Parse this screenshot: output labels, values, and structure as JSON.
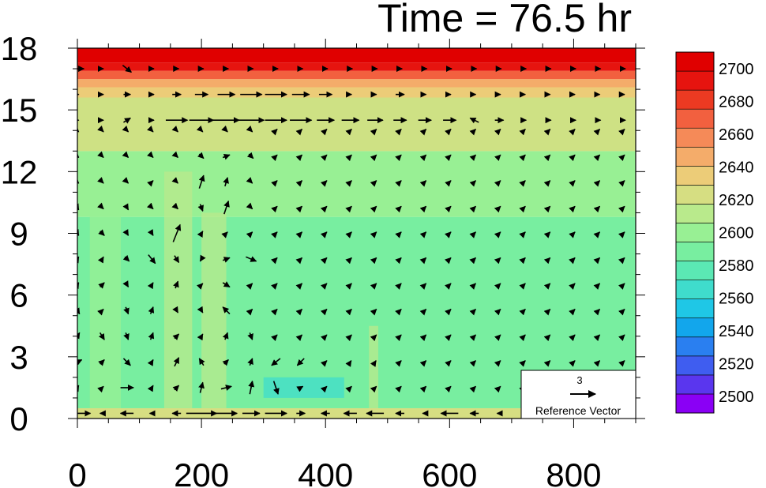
{
  "chart_data": {
    "type": "heatmap",
    "title": "Time = 76.5 hr",
    "x_ticks": [
      0,
      200,
      400,
      600,
      800
    ],
    "y_ticks": [
      0,
      3,
      6,
      9,
      12,
      15,
      18
    ],
    "xlim": [
      0,
      900
    ],
    "ylim": [
      0,
      18
    ],
    "colorbar": {
      "labels": [
        2700,
        2680,
        2660,
        2640,
        2620,
        2600,
        2580,
        2560,
        2540,
        2520,
        2500
      ],
      "range": [
        2490,
        2710
      ],
      "colors": [
        "#8a00f5",
        "#5a36ee",
        "#3f5df0",
        "#2a7ff0",
        "#12a6ec",
        "#1fc7e6",
        "#3fdccc",
        "#5be8b4",
        "#78eea0",
        "#98f094",
        "#b9ea8c",
        "#d6de82",
        "#eccc78",
        "#f4ac6a",
        "#f58a58",
        "#f2603f",
        "#ec3a22",
        "#e6140f",
        "#e00000"
      ]
    },
    "reference_vector": {
      "value": "3",
      "label": "Reference Vector"
    },
    "field_bands": [
      {
        "y0": 0,
        "y1": 0.5,
        "value": 2625
      },
      {
        "y0": 0.5,
        "y1": 9.8,
        "value": 2585
      },
      {
        "y0": 9.8,
        "y1": 13,
        "value": 2598
      },
      {
        "y0": 13,
        "y1": 15.6,
        "value": 2612
      },
      {
        "y0": 15.6,
        "y1": 16.1,
        "value": 2632
      },
      {
        "y0": 16.1,
        "y1": 16.5,
        "value": 2652
      },
      {
        "y0": 16.5,
        "y1": 16.9,
        "value": 2672
      },
      {
        "y0": 16.9,
        "y1": 17.3,
        "value": 2690
      },
      {
        "y0": 17.3,
        "y1": 18,
        "value": 2705
      }
    ],
    "field_patches": [
      {
        "x0": 20,
        "x1": 70,
        "y0": 0.5,
        "y1": 13,
        "value": 2605
      },
      {
        "x0": 140,
        "x1": 185,
        "y0": 0.5,
        "y1": 12,
        "value": 2615
      },
      {
        "x0": 200,
        "x1": 240,
        "y0": 0.5,
        "y1": 10,
        "value": 2612
      },
      {
        "x0": 300,
        "x1": 430,
        "y0": 1.0,
        "y1": 2.0,
        "value": 2568
      },
      {
        "x0": 470,
        "x1": 485,
        "y0": 0.5,
        "y1": 4.5,
        "value": 2612
      },
      {
        "x0": 0,
        "x1": 900,
        "y0": 13,
        "y1": 15.6,
        "value": 2618
      }
    ],
    "vectors": {
      "x_start": 0,
      "x_step": 40,
      "y_start": 0.25,
      "y_step": 1.25,
      "rows": [
        {
          "y": 0.25,
          "u": [
            3,
            -0.5,
            -1.5,
            -0.5,
            -1,
            3.5,
            2.5,
            2,
            2.5,
            1,
            -1,
            -1.5,
            -2,
            -1,
            -0.5,
            -2,
            -1,
            -0.5,
            -0.5,
            -1,
            -0.5,
            -0.5,
            -0.5
          ],
          "v": [
            0,
            0,
            0,
            0,
            0,
            0,
            0,
            0,
            0,
            0,
            0,
            0,
            0,
            0,
            0,
            0,
            0,
            0,
            0,
            0,
            0,
            0,
            0
          ]
        },
        {
          "y": 1.5,
          "u": [
            0.3,
            0.3,
            1.5,
            0.3,
            0.5,
            0.3,
            1.2,
            0.3,
            0.5,
            0.5,
            0.3,
            0.3,
            0.3,
            0.3,
            0.3,
            0.3,
            0.3,
            0.3,
            0.3,
            0.3,
            0.3,
            0.3,
            0.3
          ],
          "v": [
            0.5,
            0.3,
            0,
            0.5,
            0.5,
            1.2,
            0.3,
            1.5,
            -1.5,
            0.3,
            0.3,
            0.3,
            0.3,
            0.3,
            0.3,
            0.3,
            0.3,
            0.3,
            0.3,
            0.3,
            0.3,
            0.3,
            0.3
          ]
        },
        {
          "y": 2.75,
          "u": [
            1,
            0.5,
            0.8,
            0.3,
            0.5,
            -0.5,
            0.5,
            0.3,
            -1,
            -0.8,
            0.3,
            0.2,
            0.2,
            0.3,
            0.3,
            0.3,
            0.3,
            0.3,
            0.3,
            0.3,
            0.3,
            0.3,
            0.3
          ],
          "v": [
            0.5,
            0.5,
            -0.8,
            0.5,
            1,
            0.8,
            0.5,
            0.8,
            -0.8,
            -0.8,
            0.3,
            0.3,
            0.3,
            0.3,
            0.3,
            0.3,
            0.3,
            0.3,
            0.3,
            0.3,
            0.3,
            0.3,
            0.3
          ]
        },
        {
          "y": 4.0,
          "u": [
            0.5,
            0.5,
            0.3,
            0.3,
            0.5,
            0.3,
            0.3,
            0.3,
            0.3,
            0.3,
            0.3,
            0.3,
            0.3,
            0.3,
            0.3,
            0.3,
            0.3,
            0.3,
            0.3,
            0.3,
            0.3,
            0.3,
            0.3
          ],
          "v": [
            0.8,
            -0.8,
            -0.8,
            0.8,
            0.5,
            0.5,
            0.8,
            -0.8,
            0.3,
            0.3,
            0.3,
            0.3,
            0.3,
            0.3,
            0.3,
            0.3,
            0.3,
            0.3,
            0.3,
            0.3,
            0.3,
            0.3,
            0.3
          ]
        },
        {
          "y": 5.25,
          "u": [
            0.5,
            0.3,
            0.3,
            0.3,
            0.3,
            0.3,
            -0.8,
            0.3,
            0.3,
            0.3,
            0.3,
            0.3,
            0.3,
            0.3,
            0.3,
            0.3,
            0.3,
            0.3,
            0.3,
            0.3,
            0.3,
            0.3,
            0.3
          ],
          "v": [
            -0.8,
            0.3,
            -0.8,
            0.8,
            -0.5,
            -0.5,
            0.8,
            0.3,
            0.3,
            0.3,
            0.3,
            0.3,
            0.3,
            0.3,
            0.3,
            0.3,
            0.3,
            0.3,
            0.3,
            0.3,
            0.3,
            0.3,
            0.3
          ]
        },
        {
          "y": 6.5,
          "u": [
            0.3,
            0.5,
            0.3,
            0.3,
            0.3,
            0.3,
            0.8,
            0.3,
            0.3,
            0.3,
            0.3,
            0.3,
            0.3,
            0.3,
            0.3,
            0.3,
            0.3,
            0.3,
            0.3,
            0.3,
            0.3,
            0.3,
            0.3
          ],
          "v": [
            0.5,
            0.5,
            -0.5,
            0.5,
            0.8,
            0.3,
            -0.5,
            0.3,
            0.3,
            0.3,
            0.3,
            0.3,
            0.3,
            0.3,
            0.3,
            0.3,
            0.3,
            0.3,
            0.3,
            0.3,
            0.3,
            0.3,
            0.3
          ]
        },
        {
          "y": 7.75,
          "u": [
            0.3,
            0.3,
            0.5,
            0.8,
            0.5,
            -0.3,
            0.8,
            1.2,
            0.3,
            0.3,
            0.3,
            0.3,
            0.3,
            0.3,
            0.3,
            0.3,
            0.3,
            0.3,
            0.3,
            0.3,
            0.3,
            0.3,
            0.3
          ],
          "v": [
            0.5,
            0.5,
            -0.5,
            -1,
            -0.8,
            -0.5,
            0.3,
            -0.5,
            0.3,
            0.3,
            0.3,
            0.3,
            0.3,
            0.3,
            0.3,
            0.3,
            0.3,
            0.3,
            0.3,
            0.3,
            0.3,
            0.3,
            0.3
          ]
        },
        {
          "y": 9.0,
          "u": [
            0.3,
            0.5,
            0.3,
            0.3,
            0.8,
            0.3,
            0.3,
            0.3,
            0.3,
            0.3,
            0.3,
            0.3,
            0.3,
            0.3,
            0.3,
            0.3,
            0.3,
            0.3,
            0.3,
            0.3,
            0.3,
            0.3,
            0.3
          ],
          "v": [
            -0.5,
            -0.5,
            -0.5,
            -0.5,
            2,
            0.5,
            0.3,
            0.3,
            0.3,
            0.3,
            0.3,
            0.3,
            0.3,
            0.3,
            0.3,
            0.3,
            0.3,
            0.3,
            0.3,
            0.3,
            0.3,
            0.3,
            0.3
          ]
        },
        {
          "y": 10.25,
          "u": [
            0.3,
            0.3,
            0.3,
            0.3,
            0.3,
            0.3,
            0.5,
            0.3,
            0.3,
            0.3,
            0.3,
            0.3,
            0.3,
            0.3,
            0.3,
            0.3,
            0.3,
            0.3,
            0.3,
            0.3,
            0.3,
            0.3,
            0.3
          ],
          "v": [
            -0.5,
            -0.3,
            -0.5,
            -0.3,
            -0.3,
            -0.8,
            1.5,
            -0.3,
            0.3,
            0.3,
            0.3,
            0.3,
            0.3,
            0.3,
            0.3,
            0.3,
            0.3,
            0.3,
            0.3,
            0.3,
            0.3,
            0.3,
            0.3
          ]
        },
        {
          "y": 11.5,
          "u": [
            0.3,
            0.3,
            0.3,
            0.3,
            0.3,
            0.5,
            0.3,
            0.3,
            0.3,
            0.3,
            0.3,
            0.3,
            0.3,
            0.3,
            0.3,
            0.3,
            0.3,
            0.3,
            0.3,
            0.3,
            0.3,
            0.3,
            0.3
          ],
          "v": [
            -0.3,
            -0.3,
            -0.3,
            0.3,
            -0.3,
            1.5,
            1,
            -0.3,
            0.3,
            0.3,
            0.3,
            0.3,
            0.3,
            0.3,
            0.3,
            0.3,
            0.3,
            0.3,
            0.3,
            0.3,
            0.3,
            0.3,
            0.3
          ]
        },
        {
          "y": 12.75,
          "u": [
            0.3,
            0.3,
            0.3,
            0.3,
            0.3,
            0.5,
            0.8,
            0.5,
            0.3,
            0.3,
            0.3,
            0.3,
            0.3,
            0.3,
            0.3,
            0.3,
            0.3,
            0.3,
            0.3,
            0.3,
            0.3,
            0.3,
            0.3
          ],
          "v": [
            -0.3,
            -0.3,
            -0.3,
            -0.3,
            -0.3,
            -0.5,
            0.3,
            -0.5,
            0.3,
            0.3,
            0.3,
            0.3,
            0.3,
            0.3,
            0.3,
            0.3,
            0.3,
            0.3,
            0.3,
            0.3,
            0.3,
            0.3,
            0.3
          ]
        },
        {
          "y": 14.0,
          "u": [
            0.3,
            0.3,
            0.3,
            0.3,
            0.3,
            0.3,
            0.3,
            0.3,
            0.3,
            0.3,
            0.3,
            0.3,
            0.3,
            0.3,
            0.3,
            0.3,
            0.3,
            0.3,
            0.3,
            0.3,
            0.3,
            0.3,
            0.3
          ],
          "v": [
            -0.3,
            -0.3,
            -0.3,
            -0.3,
            -0.3,
            -0.3,
            -0.3,
            -0.3,
            0.3,
            0.3,
            0.3,
            0.3,
            0.3,
            0.3,
            0.3,
            0.3,
            0.3,
            0.3,
            0.3,
            0.3,
            0.3,
            0.3,
            0.3
          ]
        },
        {
          "y": 14.5,
          "u": [
            0.3,
            0.3,
            0.8,
            0.5,
            2.5,
            2.8,
            3,
            3,
            2.5,
            2.5,
            2,
            2,
            1.8,
            1.5,
            1.5,
            1.5,
            -1,
            1,
            0.5,
            0.5,
            0.5,
            0.5,
            0.5
          ],
          "v": [
            0,
            0,
            0.5,
            0,
            0,
            0,
            0,
            0,
            0,
            0,
            0,
            0,
            0,
            0,
            0,
            0,
            0.5,
            0,
            0,
            0,
            0,
            0,
            0
          ]
        },
        {
          "y": 15.75,
          "u": [
            0.3,
            0.3,
            0.8,
            0.5,
            1,
            1.5,
            2,
            2.5,
            2.5,
            2,
            1.5,
            0.3,
            0.3,
            1,
            0.3,
            0.3,
            0.3,
            0.3,
            0.3,
            0.3,
            0.3,
            0.3,
            0.3
          ],
          "v": [
            0,
            0,
            0,
            0,
            0,
            0,
            0,
            0,
            0,
            0,
            0,
            0,
            0,
            0,
            0,
            0,
            0,
            0,
            0,
            0,
            0,
            0,
            0
          ]
        },
        {
          "y": 17.0,
          "u": [
            1.5,
            0.3,
            1,
            0.5,
            0.5,
            0.5,
            0.5,
            0.5,
            0.5,
            0.5,
            0.5,
            0.5,
            0.5,
            0.5,
            0.5,
            0.5,
            0.5,
            0.5,
            0.5,
            0.5,
            0.5,
            0.5,
            0.5
          ],
          "v": [
            0,
            0,
            -0.8,
            0,
            0,
            0,
            0,
            0,
            0,
            0,
            0,
            0,
            0,
            0,
            0,
            0,
            0,
            0,
            0,
            0,
            0,
            0,
            0
          ]
        }
      ]
    }
  }
}
